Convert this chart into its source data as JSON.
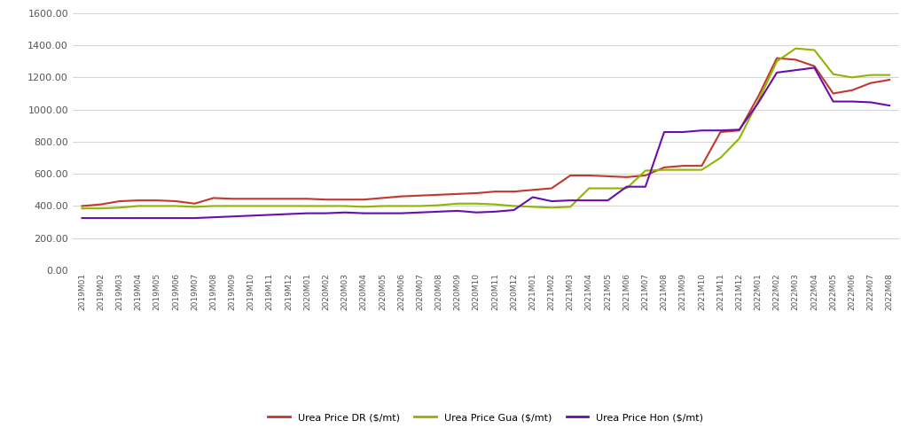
{
  "labels": [
    "2019M01",
    "2019M02",
    "2019M03",
    "2019M04",
    "2019M05",
    "2019M06",
    "2019M07",
    "2019M08",
    "2019M09",
    "2019M10",
    "2019M11",
    "2019M12",
    "2020M01",
    "2020M02",
    "2020M03",
    "2020M04",
    "2020M05",
    "2020M06",
    "2020M07",
    "2020M08",
    "2020M09",
    "2020M10",
    "2020M11",
    "2020M12",
    "2021M01",
    "2021M02",
    "2021M03",
    "2021M04",
    "2021M05",
    "2021M06",
    "2021M07",
    "2021M08",
    "2021M09",
    "2021M10",
    "2021M11",
    "2021M12",
    "2022M01",
    "2022M02",
    "2022M03",
    "2022M04",
    "2022M05",
    "2022M06",
    "2022M07",
    "2022M08"
  ],
  "dr": [
    400,
    410,
    430,
    435,
    435,
    430,
    415,
    450,
    445,
    445,
    445,
    445,
    445,
    440,
    440,
    440,
    450,
    460,
    465,
    470,
    475,
    480,
    490,
    490,
    500,
    510,
    590,
    590,
    585,
    580,
    590,
    640,
    650,
    650,
    860,
    870,
    1080,
    1320,
    1310,
    1270,
    1100,
    1120,
    1165,
    1185
  ],
  "gua": [
    385,
    385,
    390,
    400,
    400,
    400,
    395,
    400,
    400,
    400,
    400,
    400,
    400,
    400,
    400,
    395,
    400,
    400,
    400,
    405,
    415,
    415,
    410,
    400,
    395,
    390,
    395,
    510,
    510,
    510,
    620,
    625,
    625,
    625,
    700,
    820,
    1050,
    1300,
    1380,
    1370,
    1220,
    1200,
    1215,
    1215
  ],
  "hon": [
    325,
    325,
    325,
    325,
    325,
    325,
    325,
    330,
    335,
    340,
    345,
    350,
    355,
    355,
    360,
    355,
    355,
    355,
    360,
    365,
    370,
    360,
    365,
    375,
    455,
    430,
    435,
    435,
    435,
    520,
    520,
    860,
    860,
    870,
    870,
    875,
    1040,
    1230,
    1245,
    1260,
    1050,
    1050,
    1045,
    1025
  ],
  "color_dr": "#c0392b",
  "color_gua": "#8db600",
  "color_hon": "#6a0dad",
  "legend_dr": "Urea Price DR ($/mt)",
  "legend_gua": "Urea Price Gua ($/mt)",
  "legend_hon": "Urea Price Hon ($/mt)",
  "ylim": [
    0,
    1600
  ],
  "yticks": [
    0,
    200,
    400,
    600,
    800,
    1000,
    1200,
    1400,
    1600
  ],
  "bg_color": "#ffffff",
  "grid_color": "#d5d5d5"
}
